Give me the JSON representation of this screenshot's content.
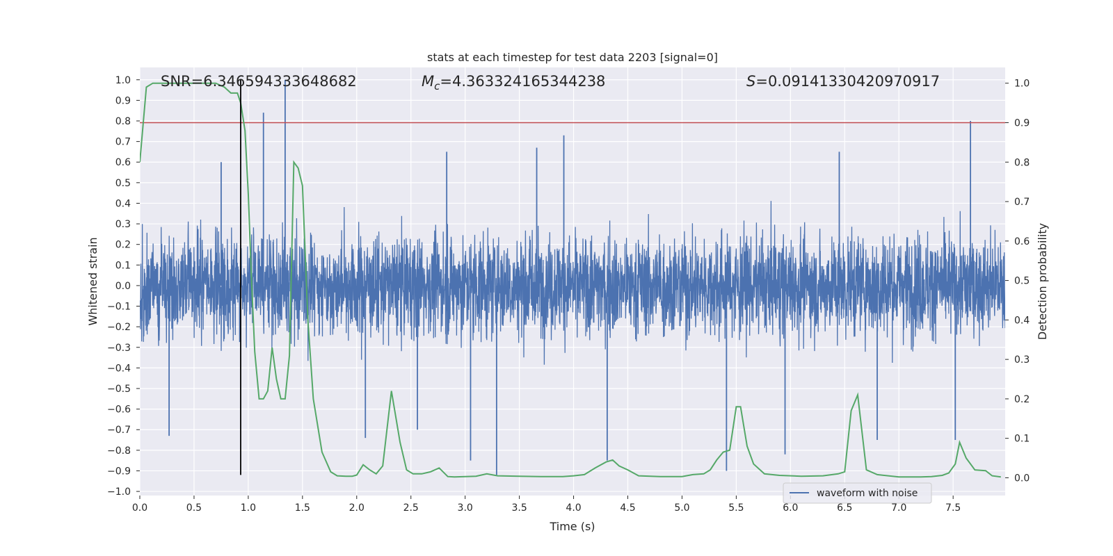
{
  "chart_data": {
    "type": "line",
    "title": "stats at each timestep for test data 2203 [signal=0]",
    "xlabel": "Time (s)",
    "ylabel_left": "Whitened strain",
    "ylabel_right": "Detection probability",
    "xlim": [
      0,
      7.98
    ],
    "ylim_left": [
      -1.02,
      1.06
    ],
    "ylim_right": [
      -0.045,
      1.04
    ],
    "x_ticks": [
      "0.0",
      "0.5",
      "1.0",
      "1.5",
      "2.0",
      "2.5",
      "3.0",
      "3.5",
      "4.0",
      "4.5",
      "5.0",
      "5.5",
      "6.0",
      "6.5",
      "7.0",
      "7.5"
    ],
    "x_tick_values": [
      0,
      0.5,
      1,
      1.5,
      2,
      2.5,
      3,
      3.5,
      4,
      4.5,
      5,
      5.5,
      6,
      6.5,
      7,
      7.5
    ],
    "y_left_ticks": [
      "1.0",
      "0.9",
      "0.8",
      "0.7",
      "0.6",
      "0.5",
      "0.4",
      "0.3",
      "0.2",
      "0.1",
      "0.0",
      "−0.1",
      "−0.2",
      "−0.3",
      "−0.4",
      "−0.5",
      "−0.6",
      "−0.7",
      "−0.8",
      "−0.9",
      "−1.0"
    ],
    "y_left_tick_values": [
      1,
      0.9,
      0.8,
      0.7,
      0.6,
      0.5,
      0.4,
      0.3,
      0.2,
      0.1,
      0,
      -0.1,
      -0.2,
      -0.3,
      -0.4,
      -0.5,
      -0.6,
      -0.7,
      -0.8,
      -0.9,
      -1
    ],
    "y_right_ticks": [
      "1.0",
      "0.9",
      "0.8",
      "0.7",
      "0.6",
      "0.5",
      "0.4",
      "0.3",
      "0.2",
      "0.1",
      "0.0"
    ],
    "y_right_tick_values": [
      1,
      0.9,
      0.8,
      0.7,
      0.6,
      0.5,
      0.4,
      0.3,
      0.2,
      0.1,
      0
    ],
    "annotations": {
      "snr": "SNR=6.346594333648682",
      "mc_symbol": "M",
      "mc_sub": "c",
      "mc_value": "=4.363324165344238",
      "s_symbol": "S",
      "s_value": "=0.09141330420970917"
    },
    "legend": {
      "label": "waveform with noise",
      "position": "lower-right"
    },
    "threshold_line": {
      "axis": "right",
      "value": 0.9,
      "color": "#c44e52"
    },
    "event_line": {
      "x": 0.93,
      "y_from": -0.92,
      "y_to": 1.0,
      "color": "#000000"
    },
    "waveform_with_noise": {
      "axis": "left",
      "color": "#4c72b0",
      "x_range": [
        0,
        7.98
      ],
      "samples": 4096,
      "typical_abs_max": 0.5,
      "spikes": [
        {
          "x": 1.14,
          "y": 0.84
        },
        {
          "x": 1.34,
          "y": 1.0
        },
        {
          "x": 7.66,
          "y": 0.8
        },
        {
          "x": 3.91,
          "y": 0.73
        },
        {
          "x": 2.83,
          "y": 0.65
        },
        {
          "x": 3.66,
          "y": 0.67
        },
        {
          "x": 3.29,
          "y": -0.92
        },
        {
          "x": 4.31,
          "y": -0.85
        },
        {
          "x": 5.41,
          "y": -0.9
        },
        {
          "x": 7.52,
          "y": -0.75
        },
        {
          "x": 2.08,
          "y": -0.74
        },
        {
          "x": 0.27,
          "y": -0.73
        },
        {
          "x": 5.95,
          "y": -0.82
        },
        {
          "x": 3.05,
          "y": -0.85
        },
        {
          "x": 6.45,
          "y": 0.65
        },
        {
          "x": 0.75,
          "y": 0.6
        },
        {
          "x": 2.56,
          "y": -0.7
        },
        {
          "x": 6.8,
          "y": -0.75
        }
      ]
    },
    "detection_probability": {
      "axis": "right",
      "color": "#55a868",
      "x": [
        0,
        0.06,
        0.12,
        0.2,
        0.3,
        0.4,
        0.5,
        0.6,
        0.7,
        0.78,
        0.84,
        0.9,
        0.93,
        0.97,
        1.0,
        1.03,
        1.06,
        1.1,
        1.14,
        1.18,
        1.22,
        1.26,
        1.3,
        1.34,
        1.38,
        1.42,
        1.46,
        1.5,
        1.55,
        1.6,
        1.68,
        1.76,
        1.82,
        1.9,
        1.96,
        2.0,
        2.06,
        2.12,
        2.18,
        2.24,
        2.32,
        2.4,
        2.46,
        2.52,
        2.6,
        2.68,
        2.76,
        2.84,
        2.9,
        3.0,
        3.1,
        3.2,
        3.3,
        3.5,
        3.7,
        3.9,
        4.0,
        4.1,
        4.2,
        4.3,
        4.36,
        4.42,
        4.5,
        4.6,
        4.8,
        5.0,
        5.1,
        5.2,
        5.26,
        5.32,
        5.38,
        5.44,
        5.5,
        5.54,
        5.6,
        5.66,
        5.76,
        5.9,
        6.1,
        6.3,
        6.44,
        6.5,
        6.56,
        6.62,
        6.7,
        6.8,
        7.0,
        7.2,
        7.3,
        7.4,
        7.46,
        7.52,
        7.56,
        7.62,
        7.7,
        7.8,
        7.86,
        7.94
      ],
      "y": [
        0.8,
        0.99,
        1.0,
        1.0,
        1.0,
        1.0,
        1.0,
        1.0,
        1.0,
        0.99,
        0.975,
        0.975,
        0.95,
        0.88,
        0.72,
        0.5,
        0.32,
        0.2,
        0.2,
        0.22,
        0.33,
        0.25,
        0.2,
        0.2,
        0.31,
        0.8,
        0.785,
        0.74,
        0.4,
        0.2,
        0.065,
        0.015,
        0.005,
        0.004,
        0.004,
        0.007,
        0.033,
        0.02,
        0.01,
        0.03,
        0.22,
        0.09,
        0.02,
        0.01,
        0.01,
        0.015,
        0.025,
        0.003,
        0.002,
        0.003,
        0.004,
        0.01,
        0.005,
        0.004,
        0.003,
        0.003,
        0.005,
        0.008,
        0.025,
        0.04,
        0.045,
        0.03,
        0.02,
        0.005,
        0.003,
        0.003,
        0.008,
        0.01,
        0.02,
        0.045,
        0.065,
        0.07,
        0.18,
        0.18,
        0.08,
        0.035,
        0.01,
        0.006,
        0.004,
        0.005,
        0.01,
        0.015,
        0.17,
        0.21,
        0.02,
        0.008,
        0.002,
        0.002,
        0.003,
        0.006,
        0.012,
        0.035,
        0.09,
        0.05,
        0.02,
        0.018,
        0.005,
        0.002
      ]
    }
  }
}
